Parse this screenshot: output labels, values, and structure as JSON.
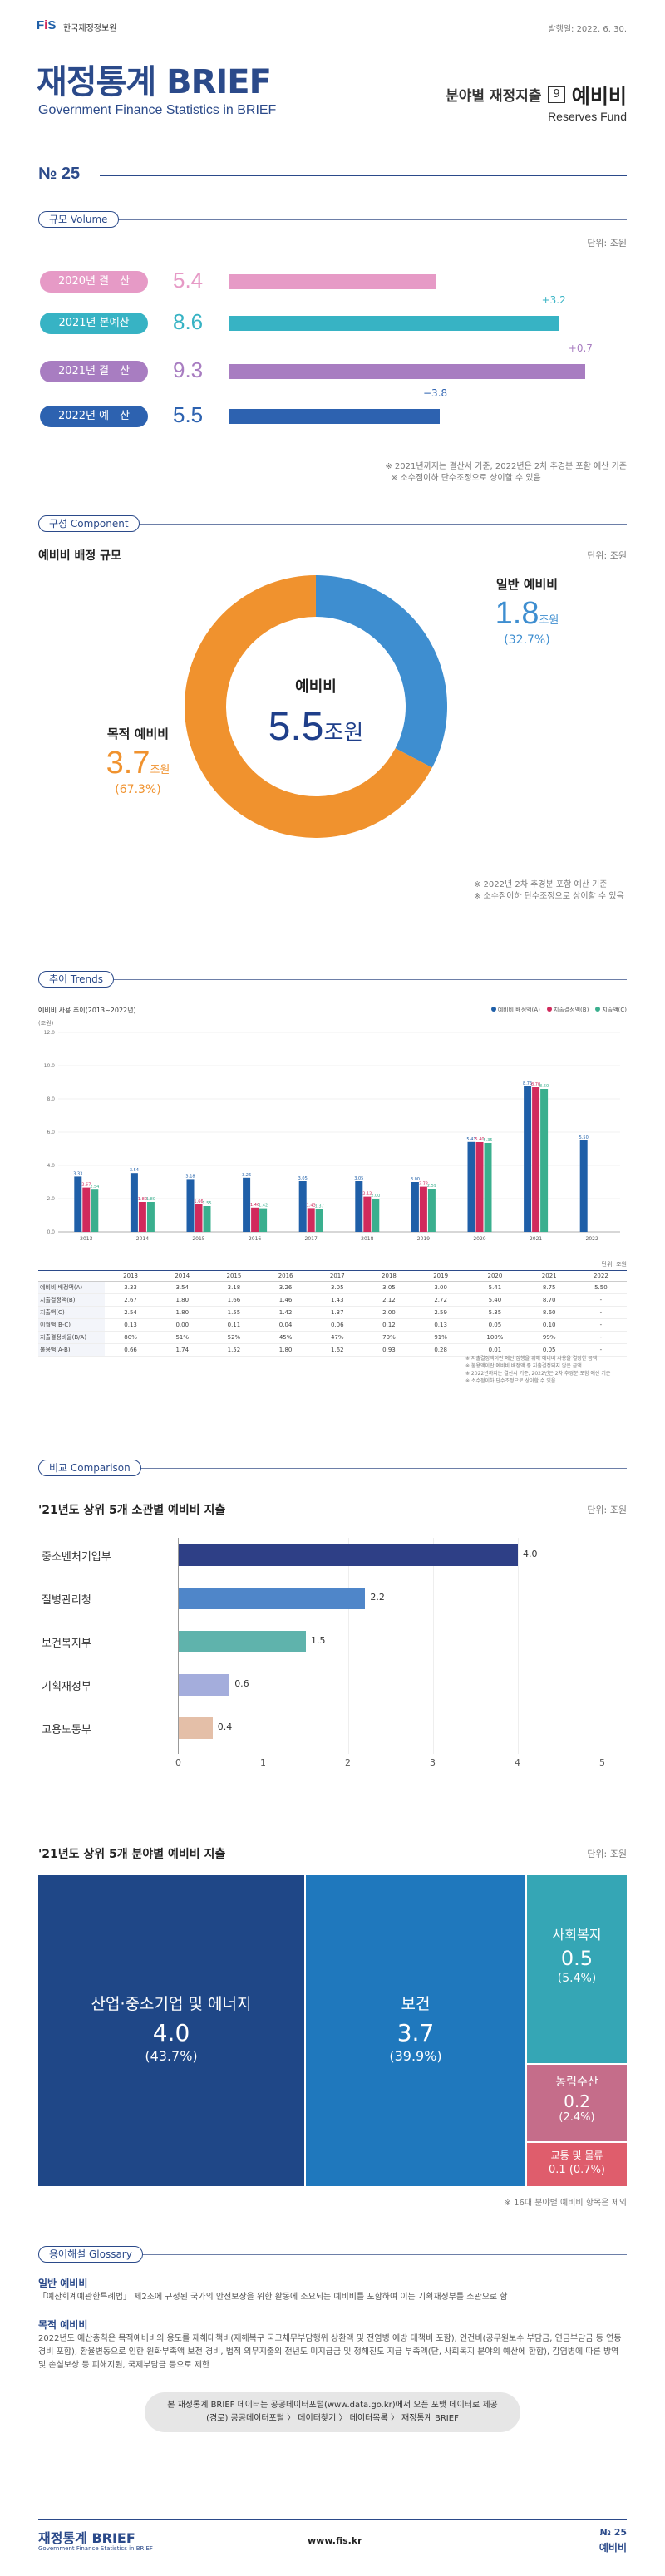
{
  "header": {
    "org": "한국재정정보원",
    "date": "발행일: 2022. 6. 30.",
    "title": "재정통계 BRIEF",
    "subtitle": "Government Finance Statistics in BRIEF",
    "category": "분야별 재정지출",
    "cat_num": "9",
    "topic": "예비비",
    "topic_en": "Reserves Fund",
    "issue": "№ 25"
  },
  "volume": {
    "label": "규모 Volume",
    "unit": "단위: 조원",
    "rows": [
      {
        "name": "2020년 결　산",
        "value": "5.4",
        "val": 5.4,
        "color": "#e69ac6",
        "change": ""
      },
      {
        "name": "2021년 본예산",
        "value": "8.6",
        "val": 8.6,
        "color": "#37b3c4",
        "change": "+3.2"
      },
      {
        "name": "2021년 결　산",
        "value": "9.3",
        "val": 9.3,
        "color": "#a87dc1",
        "change": "+0.7"
      },
      {
        "name": "2022년 예　산",
        "value": "5.5",
        "val": 5.5,
        "color": "#2d62b0",
        "change": "−3.8"
      }
    ],
    "notes": [
      "※ 2021년까지는 결산서 기준, 2022년은 2차 추경분 포함 예산 기준",
      "※ 소수점이하 단수조정으로 상이할 수 있음"
    ]
  },
  "component": {
    "label": "구성 Component",
    "unit": "단위: 조원",
    "heading": "예비비 배정 규모",
    "center_label": "예비비",
    "center_value": "5.5",
    "center_unit": "조원",
    "general": {
      "name": "일반 예비비",
      "value": "1.8",
      "unit": "조원",
      "pct": "(32.7%)",
      "share": 32.7,
      "color": "#3e8ed0"
    },
    "purpose": {
      "name": "목적 예비비",
      "value": "3.7",
      "unit": "조원",
      "pct": "(67.3%)",
      "share": 67.3,
      "color": "#f0922e"
    },
    "notes": [
      "※ 2022년 2차 추경분 포함 예산 기준",
      "※ 소수점이하 단수조정으로 상이할 수 있음"
    ]
  },
  "trends": {
    "label": "추이 Trends",
    "chart_title": "예비비 사용 추이(2013~2022년)",
    "yunit": "(조원)",
    "legend": [
      "예비비 배정액(A)",
      "지출결정액(B)",
      "지출액(C)"
    ],
    "colors": [
      "#1f5fa8",
      "#d12a5c",
      "#3aaf8e"
    ],
    "table_unit": "단위: 조원",
    "row_heads": [
      "예비비 배정액(A)",
      "지출결정액(B)",
      "지출액(C)",
      "이월액(B-C)",
      "지출결정비율(B/A)",
      "불용액(A-B)"
    ],
    "notes": [
      "※ 지출결정액이란 예산 집행을 위해 예비비 사용을 결정한 금액",
      "※ 불용액이란 예비비 배정액 중 지출결정되지 않은 금액",
      "※ 2022년까지는 결산서 기준, 2022년은 2차 추경분 포함 예산 기준",
      "※ 소수점이하 단수조정으로 상이할 수 있음"
    ]
  },
  "chart_data": {
    "type": "bar",
    "title": "예비비 사용 추이(2013~2022년)",
    "ylabel": "(조원)",
    "ylim": [
      0,
      12
    ],
    "categories": [
      "2013",
      "2014",
      "2015",
      "2016",
      "2017",
      "2018",
      "2019",
      "2020",
      "2021",
      "2022"
    ],
    "series": [
      {
        "name": "예비비 배정액(A)",
        "values": [
          3.33,
          3.54,
          3.18,
          3.26,
          3.05,
          3.05,
          3.0,
          5.41,
          8.75,
          5.5
        ]
      },
      {
        "name": "지출결정액(B)",
        "values": [
          2.67,
          1.8,
          1.66,
          1.46,
          1.43,
          2.12,
          2.72,
          5.4,
          8.7,
          null
        ]
      },
      {
        "name": "지출액(C)",
        "values": [
          2.54,
          1.8,
          1.55,
          1.42,
          1.37,
          2.0,
          2.59,
          5.35,
          8.6,
          null
        ]
      }
    ]
  },
  "comparison": {
    "label": "비교 Comparison",
    "unit": "단위: 조원",
    "title1": "'21년도 상위 5개 소관별 예비비 지출",
    "ministries": [
      {
        "name": "중소벤처기업부",
        "value": "4.0",
        "val": 4.0,
        "color": "#2e3f86"
      },
      {
        "name": "질병관리청",
        "value": "2.2",
        "val": 2.2,
        "color": "#4f86c9"
      },
      {
        "name": "보건복지부",
        "value": "1.5",
        "val": 1.5,
        "color": "#5fb3ac"
      },
      {
        "name": "기획재정부",
        "value": "0.6",
        "val": 0.6,
        "color": "#a4addc"
      },
      {
        "name": "고용노동부",
        "value": "0.4",
        "val": 0.4,
        "color": "#e4bfa8"
      }
    ],
    "axis": [
      "0",
      "1",
      "2",
      "3",
      "4",
      "5"
    ],
    "title2": "'21년도 상위 5개 분야별 예비비 지출",
    "tiles": [
      {
        "name": "산업·중소기업 및 에너지",
        "value": "4.0",
        "pct": "(43.7%)",
        "color": "#1f4787"
      },
      {
        "name": "보건",
        "value": "3.7",
        "pct": "(39.9%)",
        "color": "#1f78bd"
      },
      {
        "name": "사회복지",
        "value": "0.5",
        "pct": "(5.4%)",
        "color": "#35a6b5"
      },
      {
        "name": "농림수산",
        "value": "0.2",
        "pct": "(2.4%)",
        "color": "#c56d8a"
      },
      {
        "name": "교통 및 물류",
        "value": "0.1",
        "pct": "(0.7%)",
        "color": "#df5d6c"
      }
    ],
    "note": "※ 16대 분야별 예비비 항목은 제외"
  },
  "glossary": {
    "label": "용어해설 Glossary",
    "t1": "일반 예비비",
    "d1": "「예산회계예관한특례법」 제2조에 규정된 국가의 안전보장을 위한 활동에 소요되는 예비비를 포함하여 이는 기획재정부를 소관으로 함",
    "t2": "목적 예비비",
    "d2": "2022년도 예산총칙은 목적예비비의 용도를 재해대책비(재해복구 국고채무부담행위 상환액 및 전염병 예방 대책비 포함), 인건비(공무원보수 부담금, 연금부담금 등 연동경비 포함), 환율변동으로 인한 원화부족액 보전 경비, 법적 의무지출의 전년도 미지급금 및 정해진도 지급 부족액(단, 사회복지 분야의 예산에 한함), 감염병에 따른 방역 및 손실보상 등 피해지원, 국제부담금 등으로 제한"
  },
  "footer_box": {
    "l1": "본 재정통계 BRIEF 데이터는 공공데이터포털(www.data.go.kr)에서 오픈 포맷 데이터로 제공",
    "l2": "(경로) 공공데이터포털 〉 데이터찾기 〉 데이터목록 〉 재정통계 BRIEF"
  },
  "footer": {
    "brand": "재정통계 BRIEF",
    "brand_sub": "Government Finance Statistics in BRIEF",
    "url": "www.fis.kr",
    "issue": "№ 25",
    "topic": "예비비"
  }
}
